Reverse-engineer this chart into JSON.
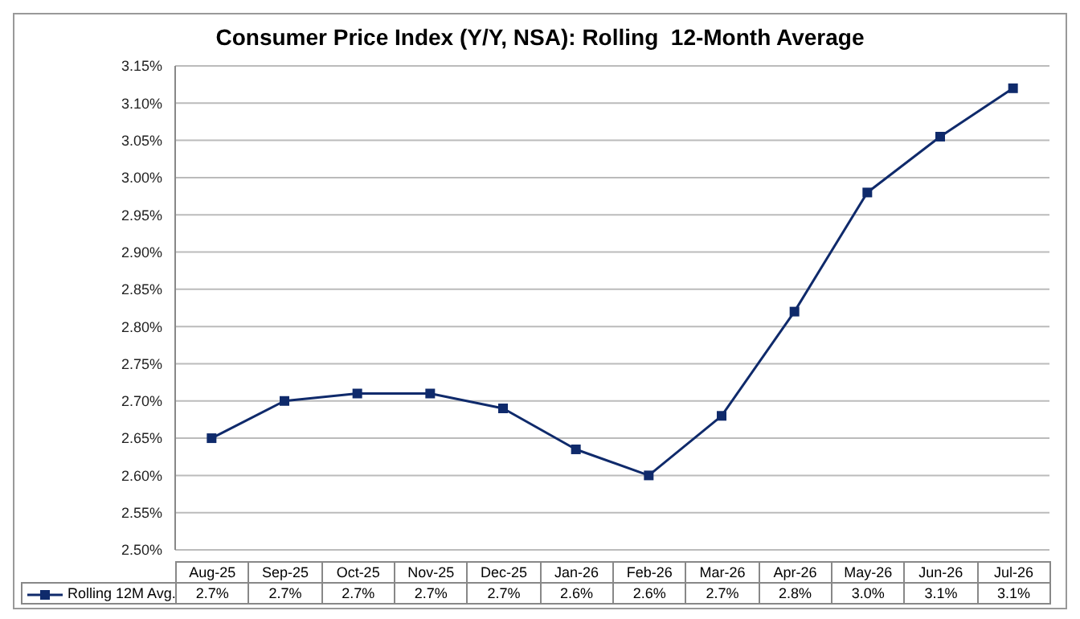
{
  "chart_data": {
    "type": "line",
    "title": "Consumer Price Index (Y/Y, NSA): Rolling  12-Month Average",
    "categories": [
      "Aug-25",
      "Sep-25",
      "Oct-25",
      "Nov-25",
      "Dec-25",
      "Jan-26",
      "Feb-26",
      "Mar-26",
      "Apr-26",
      "May-26",
      "Jun-26",
      "Jul-26"
    ],
    "series": [
      {
        "name": "Rolling 12M Avg.",
        "color": "#0f2a6b",
        "values": [
          2.65,
          2.7,
          2.71,
          2.71,
          2.69,
          2.635,
          2.6,
          2.68,
          2.82,
          2.98,
          3.055,
          3.12
        ],
        "value_labels": [
          "2.7%",
          "2.7%",
          "2.7%",
          "2.7%",
          "2.7%",
          "2.6%",
          "2.6%",
          "2.7%",
          "2.8%",
          "3.0%",
          "3.1%",
          "3.1%"
        ]
      }
    ],
    "ylim": [
      2.5,
      3.15
    ],
    "yticks": [
      {
        "value": 2.5,
        "label": "2.50%"
      },
      {
        "value": 2.55,
        "label": "2.55%"
      },
      {
        "value": 2.6,
        "label": "2.60%"
      },
      {
        "value": 2.65,
        "label": "2.65%"
      },
      {
        "value": 2.7,
        "label": "2.70%"
      },
      {
        "value": 2.75,
        "label": "2.75%"
      },
      {
        "value": 2.8,
        "label": "2.80%"
      },
      {
        "value": 2.85,
        "label": "2.85%"
      },
      {
        "value": 2.9,
        "label": "2.90%"
      },
      {
        "value": 2.95,
        "label": "2.95%"
      },
      {
        "value": 3.0,
        "label": "3.00%"
      },
      {
        "value": 3.05,
        "label": "3.05%"
      },
      {
        "value": 3.1,
        "label": "3.10%"
      },
      {
        "value": 3.15,
        "label": "3.15%"
      }
    ],
    "grid": "y",
    "legend": "bottom",
    "marker": "square",
    "line_style": "solid"
  }
}
